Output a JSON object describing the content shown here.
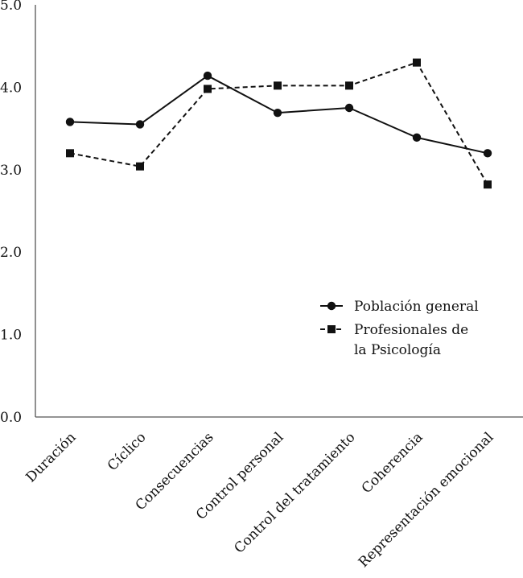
{
  "chart_data": {
    "type": "line",
    "title": "",
    "xlabel": "",
    "ylabel": "",
    "ylim": [
      0,
      5
    ],
    "yticks": [
      "0.0",
      "1.0",
      "2.0",
      "3.0",
      "4.0",
      "5.0"
    ],
    "categories": [
      "Duración",
      "Cíclico",
      "Consecuencias",
      "Control personal",
      "Control del tratamiento",
      "Coherencia",
      "Representación emocional"
    ],
    "series": [
      {
        "name": "Población general",
        "marker": "circle",
        "line": "solid",
        "values": [
          3.58,
          3.55,
          4.14,
          3.69,
          3.75,
          3.39,
          3.2
        ]
      },
      {
        "name": "Profesionales de la Psicología",
        "name_lines": [
          "Profesionales de",
          "la Psicología"
        ],
        "marker": "square",
        "line": "dashed",
        "values": [
          3.2,
          3.04,
          3.98,
          4.02,
          4.02,
          4.3,
          2.82
        ]
      }
    ],
    "legend_position": "right",
    "grid": false,
    "colors": {
      "series": "#111111",
      "axis": "#555555"
    }
  }
}
